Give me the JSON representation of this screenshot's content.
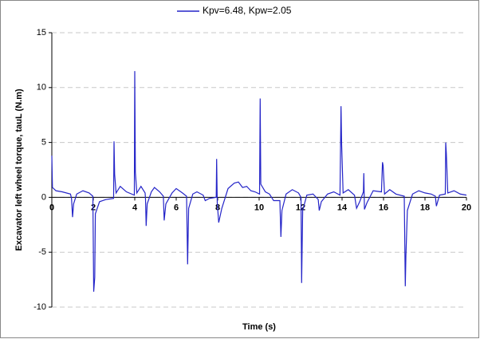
{
  "chart_data": {
    "type": "line",
    "xlabel": "Time (s)",
    "ylabel": "Excavator left wheel torque, tauL (N.m)",
    "x": [
      0,
      0.03,
      0.2,
      0.5,
      0.9,
      0.95,
      1.0,
      1.05,
      1.2,
      1.5,
      1.8,
      1.98,
      2.02,
      2.07,
      2.1,
      2.3,
      2.6,
      2.98,
      3.0,
      3.03,
      3.1,
      3.3,
      3.6,
      3.98,
      4.0,
      4.03,
      4.1,
      4.3,
      4.5,
      4.52,
      4.55,
      4.6,
      4.8,
      4.95,
      5.2,
      5.38,
      5.42,
      5.5,
      5.8,
      6.0,
      6.3,
      6.5,
      6.55,
      6.6,
      6.8,
      7.0,
      7.3,
      7.4,
      7.6,
      7.93,
      7.95,
      7.98,
      8.05,
      8.2,
      8.5,
      8.8,
      9.0,
      9.2,
      9.4,
      9.6,
      9.8,
      10.02,
      10.05,
      10.08,
      10.3,
      10.5,
      10.7,
      11.0,
      11.05,
      11.1,
      11.3,
      11.6,
      11.9,
      12.02,
      12.05,
      12.1,
      12.3,
      12.6,
      12.85,
      12.9,
      13.0,
      13.3,
      13.6,
      13.9,
      13.95,
      13.98,
      14.05,
      14.3,
      14.6,
      14.7,
      14.85,
      15.03,
      15.05,
      15.08,
      15.2,
      15.5,
      15.9,
      15.95,
      15.98,
      16.05,
      16.3,
      16.6,
      17.0,
      17.05,
      17.08,
      17.15,
      17.4,
      17.7,
      18.0,
      18.3,
      18.5,
      18.55,
      18.7,
      18.98,
      19.0,
      19.03,
      19.1,
      19.4,
      19.7,
      20.0
    ],
    "series": [
      {
        "name": "Kpv=6.48, Kpw=2.05",
        "color": "#2424c8",
        "values": [
          3.8,
          0.9,
          0.6,
          0.5,
          0.3,
          -0.1,
          -1.8,
          -0.6,
          0.3,
          0.6,
          0.4,
          0.1,
          -8.6,
          -7.3,
          -1.5,
          -0.4,
          -0.2,
          -0.1,
          5.1,
          2.1,
          0.4,
          1.0,
          0.5,
          0.2,
          11.5,
          2.3,
          0.4,
          1.0,
          0.4,
          -0.2,
          -2.6,
          -0.6,
          0.5,
          0.9,
          0.5,
          0.1,
          -2.1,
          -0.6,
          0.4,
          0.8,
          0.4,
          0.1,
          -6.1,
          -1.0,
          0.3,
          0.5,
          0.2,
          -0.3,
          -0.1,
          0,
          3.5,
          -0.5,
          -2.3,
          -1.0,
          0.8,
          1.3,
          1.4,
          0.9,
          1.0,
          0.6,
          0.5,
          0.3,
          9.0,
          1.2,
          0.5,
          0.3,
          -0.3,
          -0.3,
          -3.6,
          -1.2,
          0.3,
          0.7,
          0.4,
          0,
          -7.8,
          -1.2,
          0.2,
          0.3,
          -0.2,
          -1.2,
          -0.4,
          0.3,
          0.5,
          0.2,
          8.3,
          4.8,
          0.4,
          0.7,
          0.2,
          -1.0,
          -0.4,
          0.5,
          2.2,
          -1.1,
          -0.5,
          0.6,
          0.5,
          3.2,
          2.9,
          0.3,
          0.7,
          0.3,
          0.1,
          -8.1,
          -5.3,
          -1.2,
          0.3,
          0.6,
          0.4,
          0.3,
          0.1,
          -0.8,
          0.2,
          0.3,
          5.0,
          4.0,
          0.4,
          0.6,
          0.3,
          0.2
        ]
      }
    ],
    "xlim": [
      0,
      20
    ],
    "xticks": [
      0,
      2,
      4,
      6,
      8,
      10,
      12,
      14,
      16,
      18,
      20
    ],
    "ylim": [
      -10,
      15
    ],
    "yticks": [
      -10,
      -5,
      0,
      5,
      10,
      15
    ],
    "grid": true,
    "legend": "top"
  }
}
